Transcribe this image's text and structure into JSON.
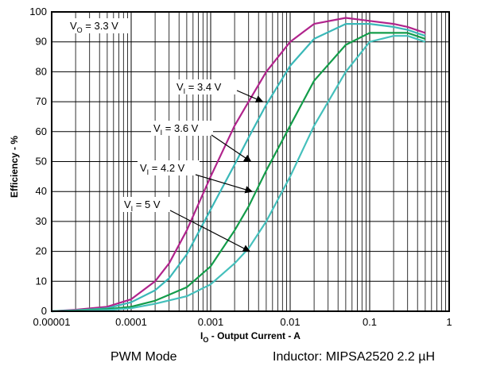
{
  "chart_data": {
    "type": "line",
    "title": "",
    "xlabel": "I",
    "xlabel_sub": "O",
    "xlabel_rest": " - Output Current - A",
    "ylabel": "Efficiency - %",
    "x_scale": "log",
    "xlim": [
      1e-05,
      1
    ],
    "ylim": [
      0,
      100
    ],
    "grid": true,
    "x_ticks": [
      1e-05,
      0.0001,
      0.001,
      0.01,
      0.1,
      1
    ],
    "x_tick_labels": [
      "0.00001",
      "0.0001",
      "0.001",
      "0.01",
      "0.1",
      "1"
    ],
    "y_ticks": [
      0,
      10,
      20,
      30,
      40,
      50,
      60,
      70,
      80,
      90,
      100
    ],
    "y_tick_labels": [
      "0",
      "10",
      "20",
      "30",
      "40",
      "50",
      "60",
      "70",
      "80",
      "90",
      "100"
    ],
    "series": [
      {
        "name": "VI = 3.4 V",
        "color": "#b0248c",
        "points": [
          [
            1e-05,
            0
          ],
          [
            2e-05,
            0.5
          ],
          [
            5e-05,
            1.5
          ],
          [
            0.0001,
            4
          ],
          [
            0.0002,
            10
          ],
          [
            0.0003,
            16
          ],
          [
            0.0005,
            27
          ],
          [
            0.001,
            45
          ],
          [
            0.002,
            62
          ],
          [
            0.003,
            70
          ],
          [
            0.005,
            80
          ],
          [
            0.01,
            90
          ],
          [
            0.02,
            96
          ],
          [
            0.05,
            98
          ],
          [
            0.1,
            97
          ],
          [
            0.2,
            96
          ],
          [
            0.3,
            95
          ],
          [
            0.5,
            93
          ]
        ]
      },
      {
        "name": "VI = 3.6 V",
        "color": "#3ab8b8",
        "points": [
          [
            1e-05,
            0
          ],
          [
            2e-05,
            0.3
          ],
          [
            5e-05,
            1
          ],
          [
            0.0001,
            3
          ],
          [
            0.0002,
            7
          ],
          [
            0.0003,
            11
          ],
          [
            0.0005,
            19
          ],
          [
            0.001,
            34
          ],
          [
            0.002,
            49
          ],
          [
            0.003,
            58
          ],
          [
            0.005,
            69
          ],
          [
            0.01,
            82
          ],
          [
            0.02,
            91
          ],
          [
            0.05,
            96
          ],
          [
            0.1,
            96
          ],
          [
            0.2,
            95
          ],
          [
            0.3,
            94
          ],
          [
            0.5,
            92
          ]
        ]
      },
      {
        "name": "VI = 4.2 V",
        "color": "#139c4a",
        "points": [
          [
            1e-05,
            0
          ],
          [
            2e-05,
            0.2
          ],
          [
            5e-05,
            0.7
          ],
          [
            0.0001,
            1.5
          ],
          [
            0.0002,
            3.5
          ],
          [
            0.0005,
            8
          ],
          [
            0.001,
            15
          ],
          [
            0.002,
            27
          ],
          [
            0.003,
            35
          ],
          [
            0.005,
            47
          ],
          [
            0.01,
            62
          ],
          [
            0.02,
            77
          ],
          [
            0.05,
            89
          ],
          [
            0.1,
            93
          ],
          [
            0.2,
            93
          ],
          [
            0.3,
            93
          ],
          [
            0.5,
            91
          ]
        ]
      },
      {
        "name": "VI = 5 V",
        "color": "#45c0bc",
        "points": [
          [
            1e-05,
            0
          ],
          [
            2e-05,
            0.1
          ],
          [
            5e-05,
            0.4
          ],
          [
            0.0001,
            1
          ],
          [
            0.0002,
            2.5
          ],
          [
            0.0005,
            5
          ],
          [
            0.001,
            9
          ],
          [
            0.002,
            16
          ],
          [
            0.003,
            21
          ],
          [
            0.005,
            30
          ],
          [
            0.01,
            45
          ],
          [
            0.02,
            62
          ],
          [
            0.05,
            80
          ],
          [
            0.1,
            90
          ],
          [
            0.2,
            92
          ],
          [
            0.3,
            92
          ],
          [
            0.5,
            90
          ]
        ]
      }
    ],
    "annotations": [
      {
        "main": "V",
        "sub": "O",
        "rest": " = 3.3 V"
      },
      {
        "main": "V",
        "sub": "I",
        "rest": " = 3.4 V",
        "arrow_to": [
          0.0045,
          70
        ]
      },
      {
        "main": "V",
        "sub": "I",
        "rest": " = 3.6 V",
        "arrow_to": [
          0.0032,
          50
        ]
      },
      {
        "main": "V",
        "sub": "I",
        "rest": " = 4.2 V",
        "arrow_to": [
          0.0033,
          40
        ]
      },
      {
        "main": "V",
        "sub": "I",
        "rest": " = 5 V",
        "arrow_to": [
          0.0031,
          20
        ]
      }
    ]
  },
  "footer": {
    "mode": "PWM Mode",
    "inductor": "Inductor: MIPSA2520 2.2 µH"
  }
}
